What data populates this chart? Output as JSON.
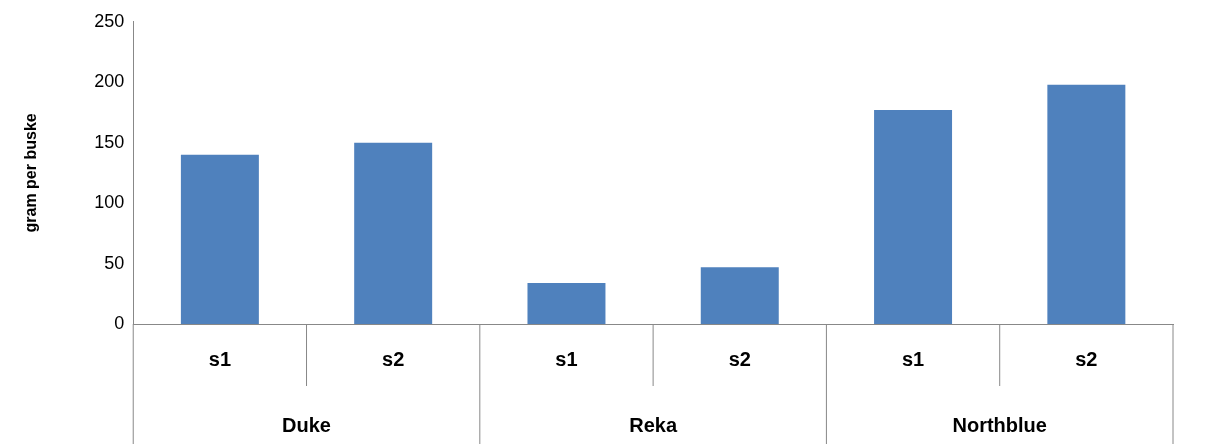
{
  "chart_data": {
    "type": "bar",
    "ylabel": "gram per buske",
    "categories": [
      "s1",
      "s2",
      "s1",
      "s2",
      "s1",
      "s2"
    ],
    "values": [
      140,
      150,
      34,
      47,
      177,
      198
    ],
    "color": "#4f81bd",
    "ylim": [
      0,
      250
    ],
    "yticks": [
      0,
      50,
      100,
      150,
      200,
      250
    ],
    "grid": false,
    "legend": false,
    "annotations": [
      "Duke",
      "Reka",
      "Northblue"
    ]
  }
}
